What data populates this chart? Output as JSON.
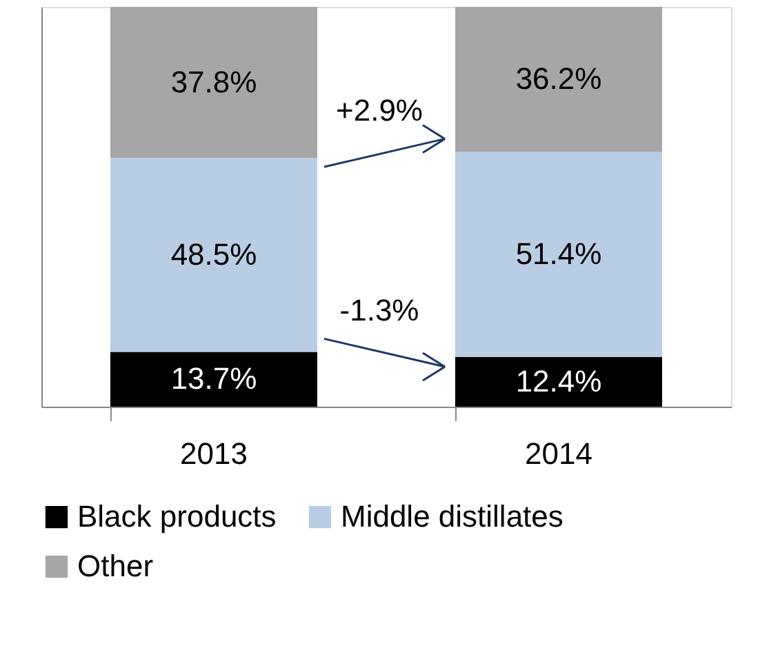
{
  "chart_data": {
    "type": "bar",
    "stacked": true,
    "categories": [
      "2013",
      "2014"
    ],
    "series": [
      {
        "name": "Black products",
        "color": "#000000",
        "values": [
          13.7,
          12.4
        ],
        "value_labels": [
          "13.7%",
          "12.4%"
        ]
      },
      {
        "name": "Middle distillates",
        "color": "#b9cde5",
        "values": [
          48.5,
          51.4
        ],
        "value_labels": [
          "48.5%",
          "51.4%"
        ]
      },
      {
        "name": "Other",
        "color": "#a6a6a6",
        "values": [
          37.8,
          36.2
        ],
        "value_labels": [
          "37.8%",
          "36.2%"
        ]
      }
    ],
    "ylim": [
      0,
      100
    ],
    "tick_labels": "x",
    "grid": false,
    "legend": "bottom",
    "annotations": [
      "+2.9%",
      "-1.3%"
    ]
  }
}
